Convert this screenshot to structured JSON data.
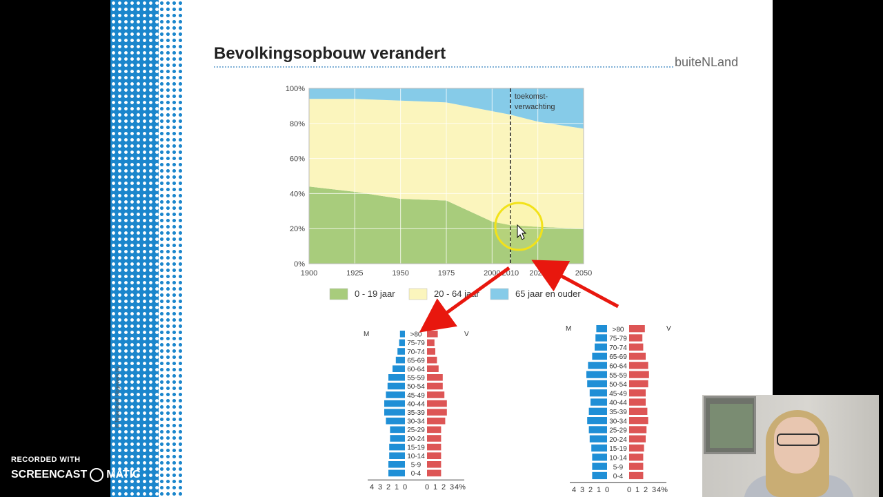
{
  "slide": {
    "title": "Bevolkingsopbouw verandert",
    "brand": "buiteNLand",
    "copyright": "© Noordhoff Uitgevers bv"
  },
  "chart_data": [
    {
      "type": "area",
      "title": "",
      "x": [
        1900,
        1925,
        1950,
        1975,
        2000,
        2010,
        2025,
        2050
      ],
      "xticks": [
        "1900",
        "1925",
        "1950",
        "1975",
        "2000",
        "2010",
        "2025",
        "2050"
      ],
      "yticks": [
        "0%",
        "20%",
        "40%",
        "60%",
        "80%",
        "100%"
      ],
      "ylim": [
        0,
        100
      ],
      "stacked": true,
      "series": [
        {
          "name": "0 - 19 jaar",
          "color": "#a8cc7c",
          "values": [
            44,
            41,
            37,
            36,
            24,
            22,
            21,
            20
          ]
        },
        {
          "name": "20 - 64 jaar",
          "color": "#fbf5bd",
          "values": [
            50,
            53,
            56,
            56,
            63,
            63,
            60,
            57
          ]
        },
        {
          "name": "65 jaar en ouder",
          "color": "#86cbe8",
          "values": [
            6,
            6,
            7,
            8,
            13,
            15,
            19,
            23
          ]
        }
      ],
      "annotation": "toekomst-\nverwachting",
      "forecast_from": 2010,
      "legend": "bottom",
      "grid": true
    },
    {
      "type": "bar",
      "title": "",
      "left_label": "M",
      "right_label": "V",
      "categories": [
        ">80",
        "75-79",
        "70-74",
        "65-69",
        "60-64",
        "55-59",
        "50-54",
        "45-49",
        "40-44",
        "35-39",
        "30-34",
        "25-29",
        "20-24",
        "15-19",
        "10-14",
        "5-9",
        "0-4"
      ],
      "series": [
        {
          "name": "M",
          "color": "#1f8fd6",
          "values": [
            0.6,
            0.7,
            0.9,
            1.1,
            1.5,
            2.0,
            2.1,
            2.3,
            2.5,
            2.5,
            2.3,
            1.8,
            1.8,
            1.9,
            1.9,
            2.0,
            2.0
          ]
        },
        {
          "name": "V",
          "color": "#dd5555",
          "values": [
            1.3,
            0.9,
            1.0,
            1.2,
            1.4,
            1.9,
            1.9,
            2.1,
            2.4,
            2.4,
            2.2,
            1.7,
            1.7,
            1.7,
            1.7,
            1.7,
            1.7
          ]
        }
      ],
      "xticks_left": [
        "4",
        "3",
        "2",
        "1",
        "0"
      ],
      "xticks_right": [
        "0",
        "1",
        "2",
        "3",
        "4%"
      ]
    },
    {
      "type": "bar",
      "title": "",
      "left_label": "M",
      "right_label": "V",
      "categories": [
        ">80",
        "75-79",
        "70-74",
        "65-69",
        "60-64",
        "55-59",
        "50-54",
        "45-49",
        "40-44",
        "35-39",
        "30-34",
        "25-29",
        "20-24",
        "15-19",
        "10-14",
        "5-9",
        "0-4"
      ],
      "series": [
        {
          "name": "M",
          "color": "#1f8fd6",
          "values": [
            1.3,
            1.4,
            1.5,
            1.8,
            2.3,
            2.5,
            2.4,
            2.1,
            2.0,
            2.2,
            2.4,
            2.2,
            2.1,
            1.9,
            1.8,
            1.8,
            1.8
          ]
        },
        {
          "name": "V",
          "color": "#dd5555",
          "values": [
            1.9,
            1.6,
            1.7,
            2.0,
            2.3,
            2.4,
            2.3,
            2.0,
            2.0,
            2.2,
            2.3,
            2.1,
            2.0,
            1.8,
            1.7,
            1.7,
            1.7
          ]
        }
      ],
      "xticks_left": [
        "4",
        "3",
        "2",
        "1",
        "0"
      ],
      "xticks_right": [
        "0",
        "1",
        "2",
        "3",
        "4%"
      ]
    }
  ],
  "overlay": {
    "watermark_line1": "RECORDED WITH",
    "watermark_left": "SCREENCAST",
    "watermark_right": "MATIC"
  }
}
